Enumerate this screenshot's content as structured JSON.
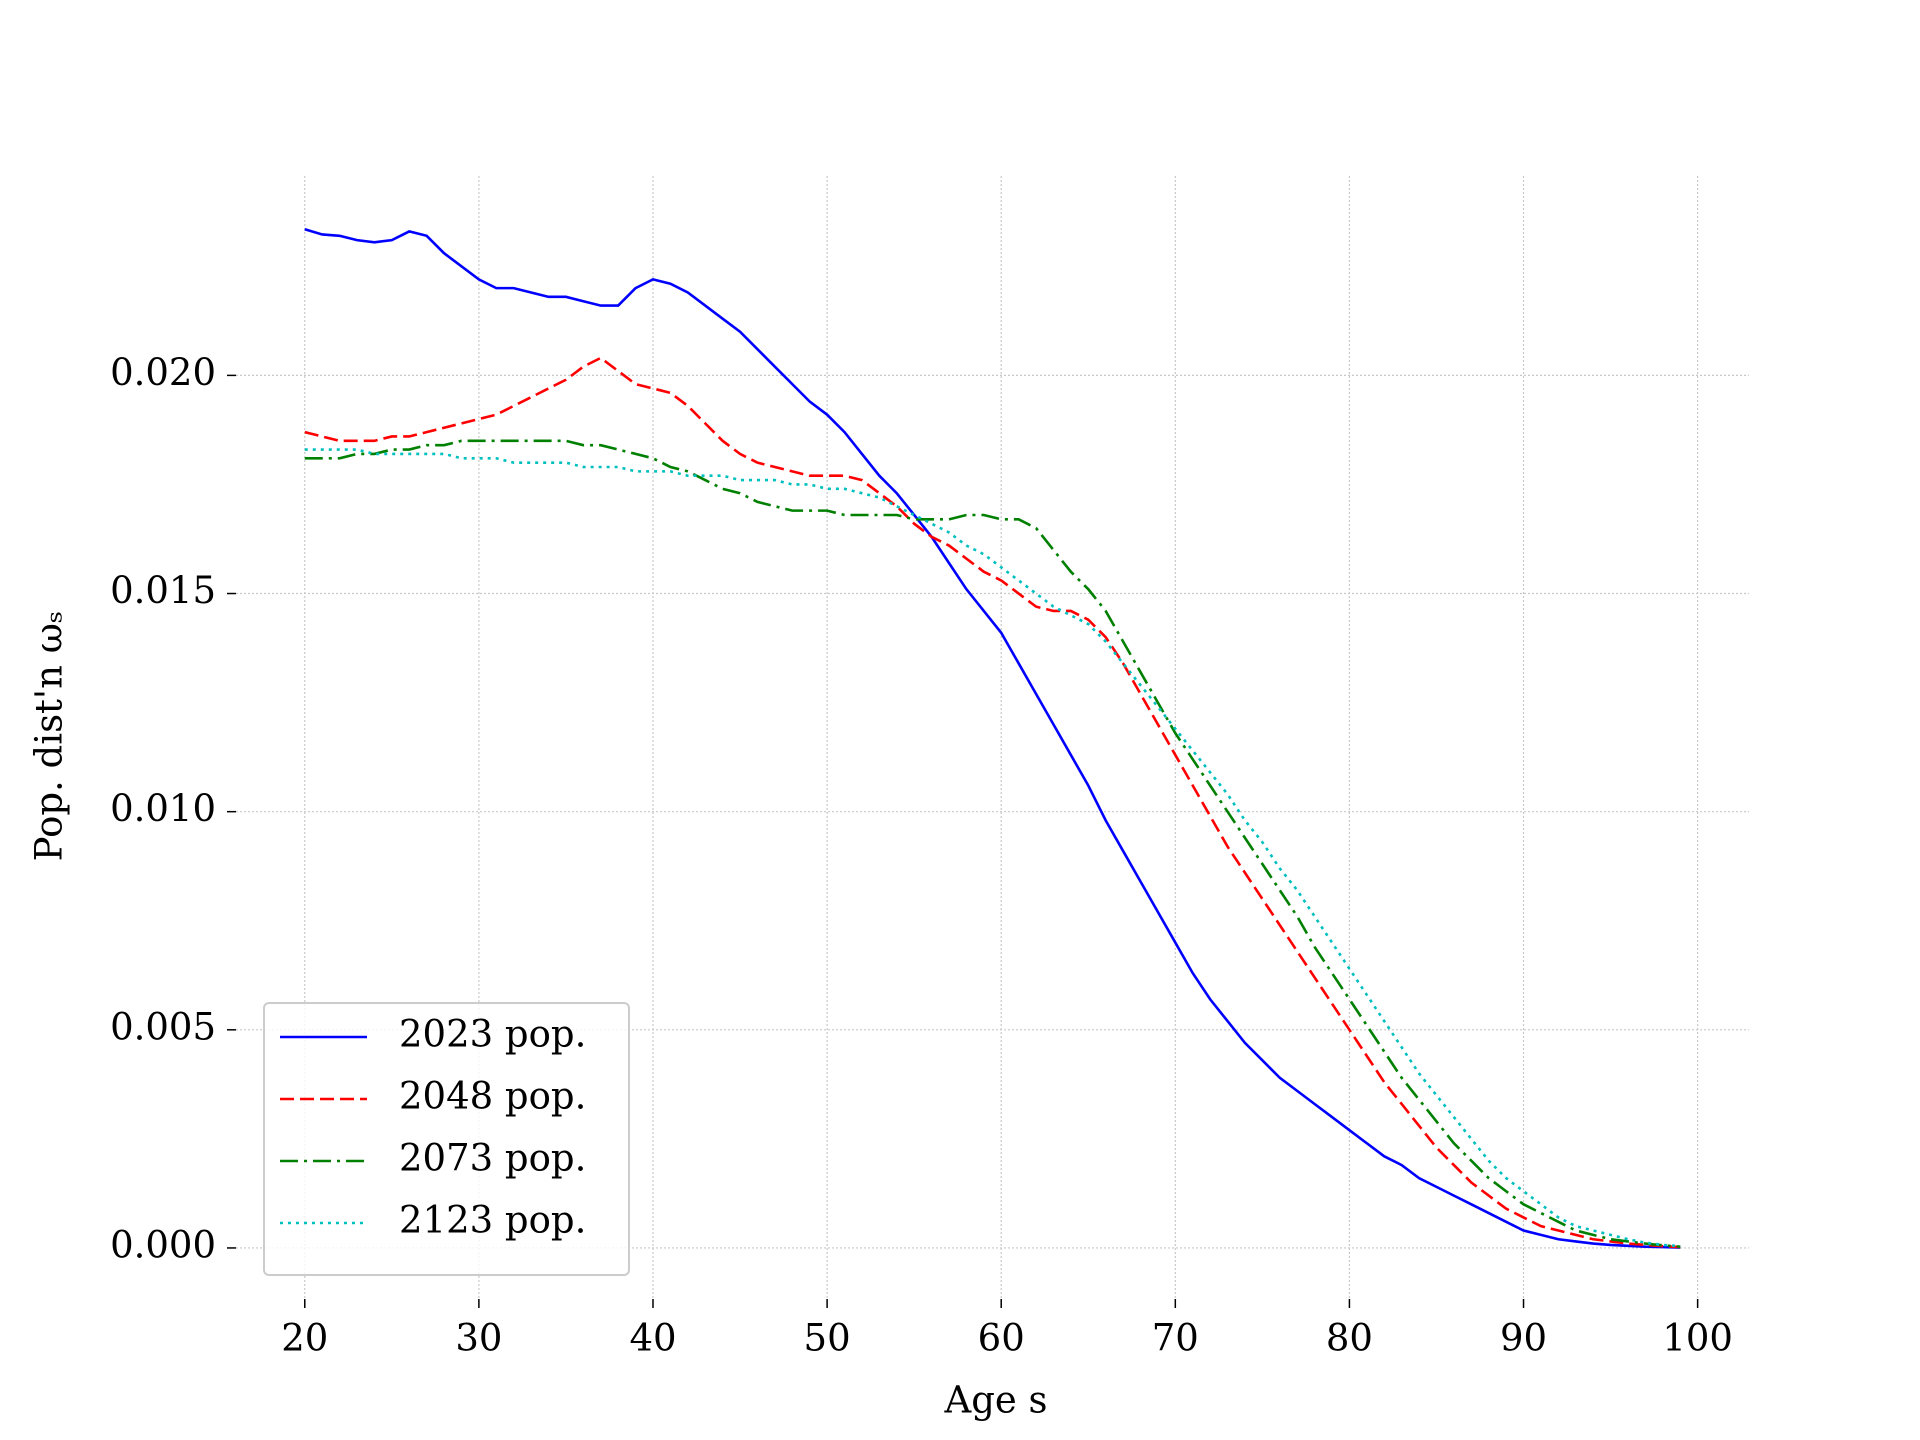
{
  "chart_data": {
    "type": "line",
    "xlabel": "Age s",
    "ylabel": "Pop. dist'n ωₛ",
    "x": [
      20,
      21,
      22,
      23,
      24,
      25,
      26,
      27,
      28,
      29,
      30,
      31,
      32,
      33,
      34,
      35,
      36,
      37,
      38,
      39,
      40,
      41,
      42,
      43,
      44,
      45,
      46,
      47,
      48,
      49,
      50,
      51,
      52,
      53,
      54,
      55,
      56,
      57,
      58,
      59,
      60,
      61,
      62,
      63,
      64,
      65,
      66,
      67,
      68,
      69,
      70,
      71,
      72,
      73,
      74,
      75,
      76,
      77,
      78,
      79,
      80,
      81,
      82,
      83,
      84,
      85,
      86,
      87,
      88,
      89,
      90,
      91,
      92,
      93,
      94,
      95,
      96,
      97,
      98,
      99
    ],
    "series": [
      {
        "name": "2023 pop.",
        "color": "#0000ff",
        "linestyle": "solid",
        "values": [
          0.02335,
          0.02323,
          0.0232,
          0.0231,
          0.02305,
          0.0231,
          0.0233,
          0.0232,
          0.0228,
          0.0225,
          0.0222,
          0.022,
          0.022,
          0.0219,
          0.0218,
          0.0218,
          0.0217,
          0.0216,
          0.0216,
          0.022,
          0.0222,
          0.0221,
          0.0219,
          0.0216,
          0.0213,
          0.021,
          0.0206,
          0.0202,
          0.0198,
          0.0194,
          0.0191,
          0.0187,
          0.0182,
          0.0177,
          0.0173,
          0.0168,
          0.0163,
          0.0157,
          0.0151,
          0.0146,
          0.0141,
          0.0134,
          0.0127,
          0.012,
          0.0113,
          0.0106,
          0.0098,
          0.0091,
          0.0084,
          0.0077,
          0.007,
          0.0063,
          0.0057,
          0.0052,
          0.0047,
          0.0043,
          0.0039,
          0.0036,
          0.0033,
          0.003,
          0.0027,
          0.0024,
          0.0021,
          0.0019,
          0.0016,
          0.0014,
          0.0012,
          0.001,
          0.0008,
          0.0006,
          0.0004,
          0.0003,
          0.0002,
          0.00015,
          0.0001,
          7e-05,
          5e-05,
          3e-05,
          2e-05,
          1e-05
        ]
      },
      {
        "name": "2048 pop.",
        "color": "#ff0000",
        "linestyle": "dashed",
        "values": [
          0.0187,
          0.0186,
          0.0185,
          0.0185,
          0.0185,
          0.0186,
          0.0186,
          0.0187,
          0.0188,
          0.0189,
          0.019,
          0.0191,
          0.0193,
          0.0195,
          0.0197,
          0.0199,
          0.0202,
          0.0204,
          0.0201,
          0.0198,
          0.0197,
          0.0196,
          0.0193,
          0.0189,
          0.0185,
          0.0182,
          0.018,
          0.0179,
          0.0178,
          0.0177,
          0.0177,
          0.0177,
          0.0176,
          0.0173,
          0.017,
          0.0166,
          0.0163,
          0.0161,
          0.0158,
          0.0155,
          0.0153,
          0.015,
          0.0147,
          0.0146,
          0.0146,
          0.0144,
          0.014,
          0.0134,
          0.0127,
          0.012,
          0.0113,
          0.0106,
          0.0099,
          0.0092,
          0.0086,
          0.008,
          0.0074,
          0.0068,
          0.0062,
          0.0056,
          0.005,
          0.0044,
          0.0038,
          0.0033,
          0.0028,
          0.0023,
          0.0019,
          0.0015,
          0.0012,
          0.0009,
          0.0007,
          0.0005,
          0.0004,
          0.0003,
          0.0002,
          0.00015,
          0.0001,
          7e-05,
          4e-05,
          2e-05
        ]
      },
      {
        "name": "2073 pop.",
        "color": "#008000",
        "linestyle": "dashdot",
        "values": [
          0.0181,
          0.0181,
          0.0181,
          0.0182,
          0.0182,
          0.0183,
          0.0183,
          0.0184,
          0.0184,
          0.0185,
          0.0185,
          0.0185,
          0.0185,
          0.0185,
          0.0185,
          0.0185,
          0.0184,
          0.0184,
          0.0183,
          0.0182,
          0.0181,
          0.0179,
          0.0178,
          0.0176,
          0.0174,
          0.0173,
          0.0171,
          0.017,
          0.0169,
          0.0169,
          0.0169,
          0.0168,
          0.0168,
          0.0168,
          0.0168,
          0.0167,
          0.0167,
          0.0167,
          0.0168,
          0.0168,
          0.0167,
          0.0167,
          0.0165,
          0.016,
          0.0155,
          0.0151,
          0.0146,
          0.0139,
          0.0132,
          0.0125,
          0.0118,
          0.0112,
          0.0106,
          0.01,
          0.0094,
          0.0088,
          0.0082,
          0.0076,
          0.0069,
          0.0063,
          0.0057,
          0.0051,
          0.0045,
          0.0039,
          0.0034,
          0.0029,
          0.0024,
          0.002,
          0.0016,
          0.0013,
          0.001,
          0.0008,
          0.0006,
          0.0004,
          0.0003,
          0.0002,
          0.00015,
          0.0001,
          6e-05,
          3e-05
        ]
      },
      {
        "name": "2123 pop.",
        "color": "#00bfbf",
        "linestyle": "dotted",
        "values": [
          0.0183,
          0.0183,
          0.0183,
          0.0183,
          0.0182,
          0.0182,
          0.0182,
          0.0182,
          0.0182,
          0.0181,
          0.0181,
          0.0181,
          0.018,
          0.018,
          0.018,
          0.018,
          0.0179,
          0.0179,
          0.0179,
          0.0178,
          0.0178,
          0.0178,
          0.0177,
          0.0177,
          0.0177,
          0.0176,
          0.0176,
          0.0176,
          0.0175,
          0.0175,
          0.0174,
          0.0174,
          0.0173,
          0.0172,
          0.017,
          0.0168,
          0.0166,
          0.0164,
          0.0161,
          0.0159,
          0.0156,
          0.0153,
          0.015,
          0.0147,
          0.0145,
          0.0143,
          0.0139,
          0.0134,
          0.0129,
          0.0124,
          0.0119,
          0.0114,
          0.0109,
          0.0104,
          0.0098,
          0.0093,
          0.0087,
          0.0082,
          0.0076,
          0.007,
          0.0064,
          0.0058,
          0.0052,
          0.0046,
          0.004,
          0.0035,
          0.003,
          0.0025,
          0.002,
          0.0016,
          0.0013,
          0.001,
          0.0007,
          0.0005,
          0.0004,
          0.0003,
          0.0002,
          0.00012,
          7e-05,
          4e-05
        ]
      }
    ],
    "xlim": [
      16.05,
      102.95
    ],
    "ylim": [
      -0.00117,
      0.02457
    ],
    "xticks": [
      20,
      30,
      40,
      50,
      60,
      70,
      80,
      90,
      100
    ],
    "yticks": [
      {
        "value": 0,
        "label": "0.000"
      },
      {
        "value": 0.005,
        "label": "0.005"
      },
      {
        "value": 0.01,
        "label": "0.010"
      },
      {
        "value": 0.015,
        "label": "0.015"
      },
      {
        "value": 0.02,
        "label": "0.020"
      }
    ],
    "grid": true,
    "legend": "lower left"
  }
}
